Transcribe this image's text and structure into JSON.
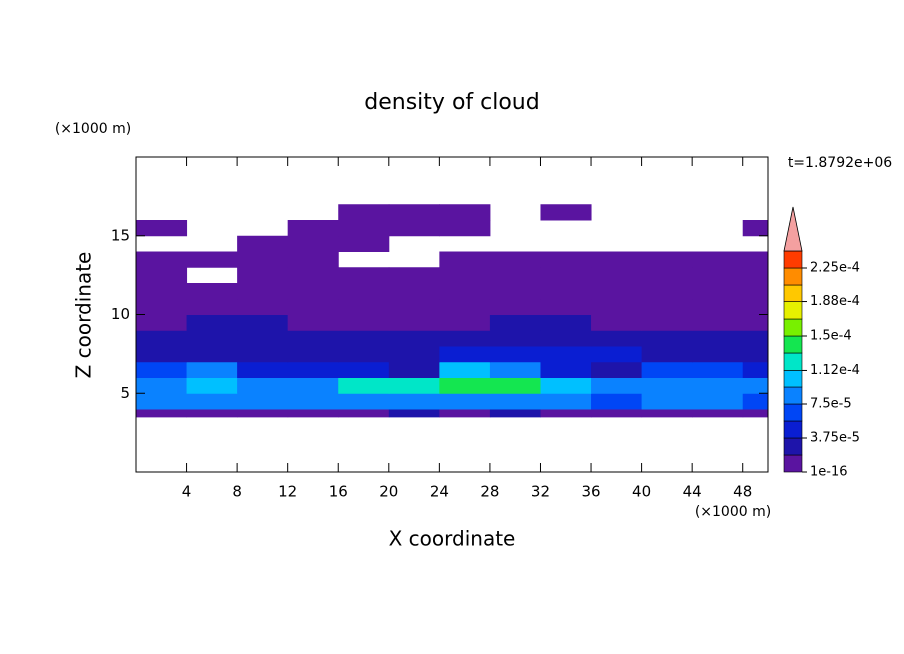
{
  "chart_data": {
    "type": "contour",
    "title": "density of cloud",
    "x_label": "X coordinate",
    "y_label": "Z coordinate",
    "x_unit": "(×1000 m)",
    "y_unit": "(×1000 m)",
    "time_label": "t=1.8792e+06",
    "xlim": [
      0,
      50
    ],
    "ylim": [
      0,
      20
    ],
    "xticks": [
      4,
      8,
      12,
      16,
      20,
      24,
      28,
      32,
      36,
      40,
      44,
      48
    ],
    "yticks": [
      5,
      10,
      15
    ],
    "xbins": [
      0,
      4,
      8,
      12,
      16,
      20,
      24,
      28,
      32,
      36,
      40,
      44,
      48,
      50
    ],
    "zbins": [
      3.5,
      4,
      5,
      6,
      7,
      8,
      9,
      10,
      11,
      12,
      13,
      14,
      15,
      16,
      17
    ],
    "field": [
      [
        1e-05,
        1e-05,
        1.5e-05,
        1e-05,
        1.5e-05,
        2e-05,
        1.5e-05,
        2e-05,
        1.5e-05,
        1e-05,
        1.5e-05,
        1e-05,
        1e-05
      ],
      [
        8e-05,
        9e-05,
        8e-05,
        8e-05,
        9e-05,
        8e-05,
        9e-05,
        9e-05,
        8e-05,
        7e-05,
        8e-05,
        8e-05,
        7e-05
      ],
      [
        8e-05,
        0.0001,
        9e-05,
        9e-05,
        0.00012,
        0.00013,
        0.00014,
        0.000145,
        0.0001,
        8e-05,
        9e-05,
        9e-05,
        8e-05
      ],
      [
        6e-05,
        8e-05,
        5e-05,
        4e-05,
        5e-05,
        3e-05,
        0.0001,
        9e-05,
        4e-05,
        3e-05,
        6e-05,
        6e-05,
        5e-05
      ],
      [
        3e-05,
        3e-05,
        3e-05,
        2.5e-05,
        3e-05,
        2.5e-05,
        4e-05,
        4e-05,
        4e-05,
        4e-05,
        3e-05,
        3e-05,
        3e-05
      ],
      [
        2e-05,
        2.5e-05,
        2e-05,
        2e-05,
        2e-05,
        2e-05,
        2e-05,
        2.5e-05,
        2.5e-05,
        2e-05,
        2e-05,
        2e-05,
        2e-05
      ],
      [
        1.5e-05,
        2e-05,
        2e-05,
        1.5e-05,
        1.5e-05,
        1.5e-05,
        1.5e-05,
        2e-05,
        2e-05,
        1.5e-05,
        1.5e-05,
        1.5e-05,
        1.5e-05
      ],
      [
        1e-05,
        1e-05,
        1e-05,
        1e-05,
        1e-05,
        1e-05,
        1e-05,
        1e-05,
        1e-05,
        1e-05,
        1e-05,
        1e-05,
        1e-05
      ],
      [
        5e-06,
        5e-06,
        5e-06,
        5e-06,
        5e-06,
        5e-06,
        5e-06,
        5e-06,
        5e-06,
        5e-06,
        5e-06,
        5e-06,
        5e-06
      ],
      [
        5e-06,
        null,
        5e-06,
        5e-06,
        5e-06,
        5e-06,
        5e-06,
        5e-06,
        5e-06,
        5e-06,
        5e-06,
        5e-06,
        5e-06
      ],
      [
        5e-06,
        5e-06,
        5e-06,
        5e-06,
        null,
        null,
        5e-06,
        5e-06,
        5e-06,
        5e-06,
        5e-06,
        5e-06,
        5e-06
      ],
      [
        null,
        null,
        5e-06,
        5e-06,
        5e-06,
        null,
        null,
        null,
        null,
        null,
        null,
        null,
        null
      ],
      [
        5e-06,
        null,
        null,
        5e-06,
        5e-06,
        5e-06,
        5e-06,
        null,
        null,
        null,
        null,
        null,
        5e-06
      ],
      [
        null,
        null,
        null,
        null,
        5e-06,
        5e-06,
        5e-06,
        null,
        5e-06,
        null,
        null,
        null,
        null
      ]
    ],
    "colorbar": {
      "levels": [
        1e-16,
        1.875e-05,
        3.75e-05,
        5.625e-05,
        7.5e-05,
        9.375e-05,
        0.000112,
        0.00013125,
        0.00015,
        0.00016875,
        0.000188,
        0.00020625,
        0.000225,
        0.00024375
      ],
      "colors": [
        "#5a14a0",
        "#1e14aa",
        "#0a1ed2",
        "#0046f5",
        "#0a82ff",
        "#00c0ff",
        "#00e6c8",
        "#14e650",
        "#78f000",
        "#e6f000",
        "#ffc800",
        "#ff8c00",
        "#ff3c00"
      ],
      "extend_color": "#f4a0a0",
      "ticks": [
        1e-16,
        {
          "value": 3.75e-05,
          "label": "3.75e-5"
        },
        {
          "value": 7.5e-05,
          "label": "7.5e-5"
        },
        {
          "value": 0.000112,
          "label": "1.12e-4"
        },
        {
          "value": 0.00015,
          "label": "1.5e-4"
        },
        {
          "value": 0.000188,
          "label": "1.88e-4"
        },
        {
          "value": 0.000225,
          "label": "2.25e-4"
        }
      ]
    }
  }
}
